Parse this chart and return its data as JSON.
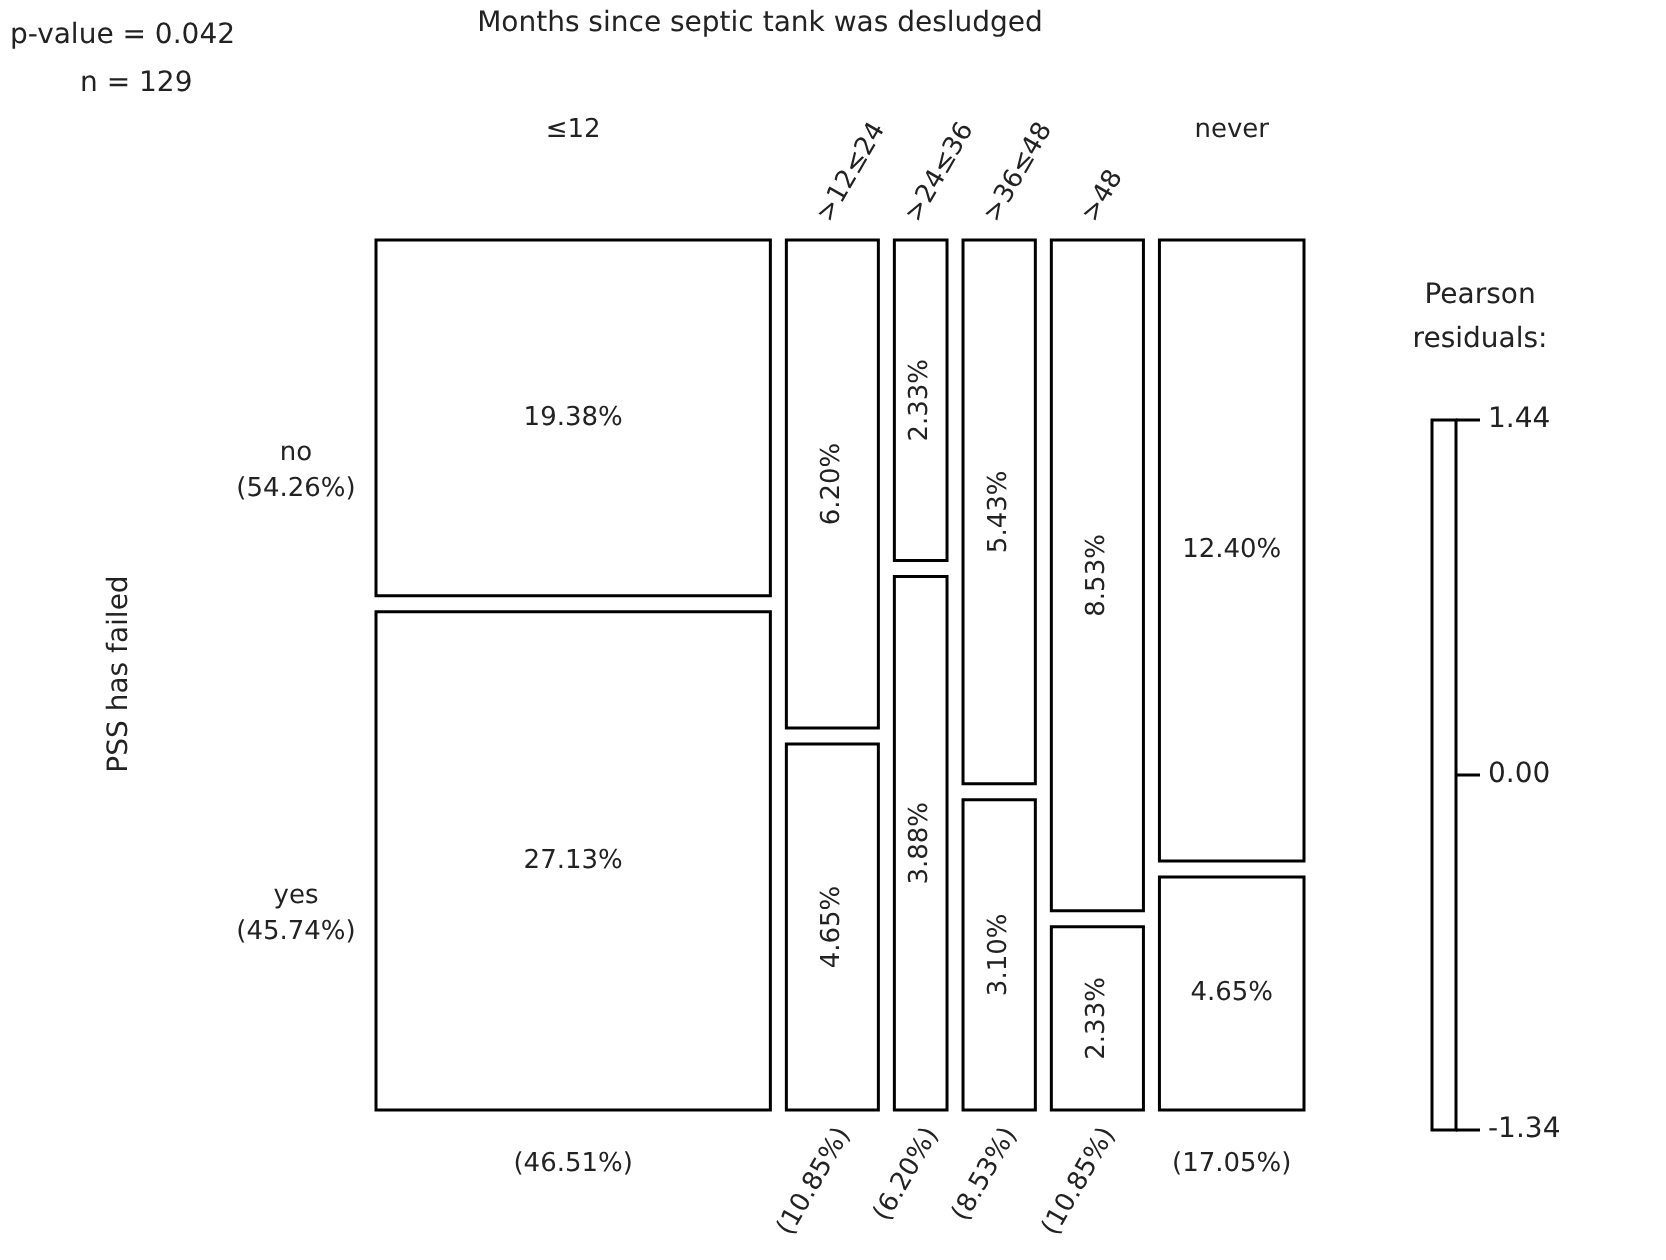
{
  "chart_data": {
    "type": "other",
    "title": "Months since septic tank was desludged",
    "ylabel": "PSS has failed",
    "clabel": "Pearson residuals:",
    "categories": [
      "≤12",
      ">12≤24",
      ">24≤36",
      ">36≤48",
      ">48",
      "never"
    ],
    "series": [
      {
        "name": "no",
        "values": [
          19.38,
          6.2,
          2.33,
          5.43,
          8.53,
          12.4
        ],
        "value_labels": [
          "19.38%",
          "6.20%",
          "2.33%",
          "5.43%",
          "8.53%",
          "12.40%"
        ]
      },
      {
        "name": "yes",
        "values": [
          27.13,
          4.65,
          3.88,
          3.1,
          2.33,
          4.65
        ],
        "value_labels": [
          "27.13%",
          "4.65%",
          "3.88%",
          "3.10%",
          "2.33%",
          "4.65%"
        ]
      }
    ],
    "totals": [
      "(46.51%)",
      "(10.85%)",
      "(6.20%)",
      "(8.53%)",
      "(10.85%)",
      "(17.05%)"
    ],
    "annotations": [
      "p-value = 0.042",
      "n = 129",
      "(54.26%)",
      "(45.74%)",
      "1.44",
      "0.00",
      "-1.34"
    ]
  }
}
